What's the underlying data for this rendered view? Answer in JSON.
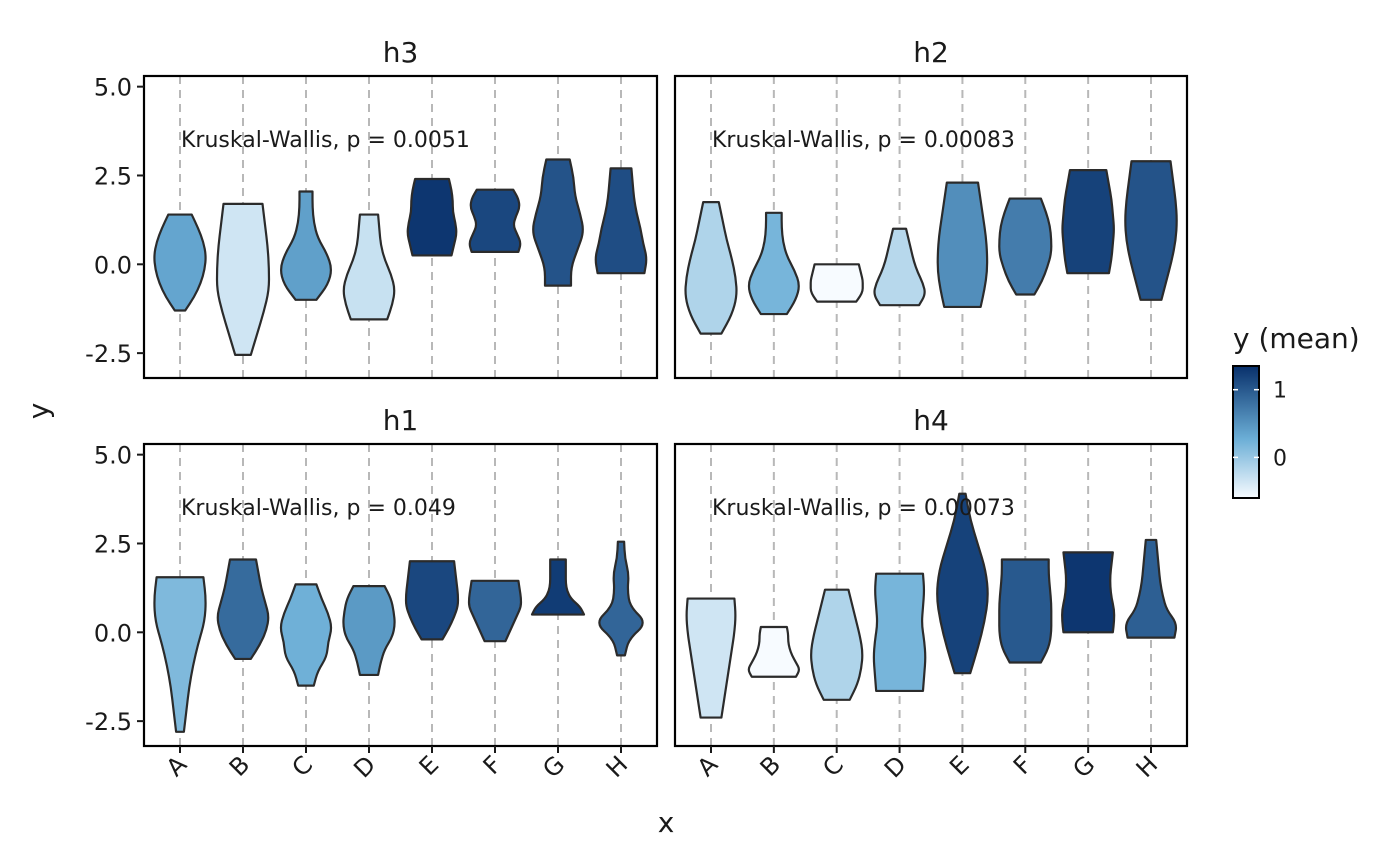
{
  "chart_data": {
    "type": "violin",
    "categories": [
      "A",
      "B",
      "C",
      "D",
      "E",
      "F",
      "G",
      "H"
    ],
    "xlabel": "x",
    "ylabel": "y",
    "ylim": [
      -3.2,
      5.3
    ],
    "yticks": [
      5.0,
      2.5,
      0.0,
      -2.5
    ],
    "ytick_labels": [
      "5.0",
      "2.5",
      "0.0",
      "-2.5"
    ],
    "grid": "vertical dashed",
    "legend": {
      "title": "y (mean)",
      "position": "right",
      "ticks": [
        1,
        0
      ],
      "tick_labels": [
        "1",
        "0"
      ],
      "range": [
        -0.6,
        1.35
      ],
      "color_low": "#f7fbff",
      "color_mid": "#6baed6",
      "color_high": "#08306b"
    },
    "panels": [
      {
        "title": "h3",
        "annotation": "Kruskal-Wallis, p = 0.0051",
        "violins": [
          {
            "x": "A",
            "min": -1.3,
            "max": 1.4,
            "mean": 0.35,
            "widths": [
              0.2,
              0.55,
              0.8,
              0.95,
              1.0,
              0.9,
              0.7,
              0.45
            ]
          },
          {
            "x": "B",
            "min": -2.55,
            "max": 1.7,
            "mean": -0.35,
            "widths": [
              0.3,
              0.55,
              0.8,
              1.0,
              1.0,
              0.95,
              0.85,
              0.75
            ]
          },
          {
            "x": "C",
            "min": -1.0,
            "max": 2.05,
            "mean": 0.4,
            "widths": [
              0.4,
              0.85,
              1.0,
              0.8,
              0.45,
              0.3,
              0.25,
              0.25
            ]
          },
          {
            "x": "D",
            "min": -1.55,
            "max": 1.4,
            "mean": -0.3,
            "widths": [
              0.7,
              0.9,
              1.0,
              0.85,
              0.6,
              0.45,
              0.4,
              0.35
            ]
          },
          {
            "x": "E",
            "min": 0.25,
            "max": 2.4,
            "mean": 1.3,
            "widths": [
              0.75,
              0.85,
              0.95,
              0.9,
              0.8,
              0.8,
              0.75,
              0.65
            ]
          },
          {
            "x": "F",
            "min": 0.35,
            "max": 2.1,
            "mean": 1.15,
            "widths": [
              0.9,
              1.0,
              0.85,
              0.7,
              0.8,
              0.95,
              0.9,
              0.7
            ]
          },
          {
            "x": "G",
            "min": -0.6,
            "max": 2.95,
            "mean": 1.05,
            "widths": [
              0.5,
              0.5,
              0.75,
              1.0,
              0.85,
              0.65,
              0.6,
              0.45
            ]
          },
          {
            "x": "H",
            "min": -0.25,
            "max": 2.7,
            "mean": 1.1,
            "widths": [
              0.9,
              1.0,
              0.85,
              0.75,
              0.6,
              0.5,
              0.45,
              0.4
            ]
          }
        ]
      },
      {
        "title": "h2",
        "annotation": "Kruskal-Wallis, p = 0.00083",
        "violins": [
          {
            "x": "A",
            "min": -1.95,
            "max": 1.75,
            "mean": -0.15,
            "widths": [
              0.4,
              0.8,
              1.0,
              0.95,
              0.8,
              0.6,
              0.45,
              0.3
            ]
          },
          {
            "x": "B",
            "min": -1.4,
            "max": 1.45,
            "mean": 0.2,
            "widths": [
              0.5,
              0.85,
              1.0,
              0.8,
              0.5,
              0.35,
              0.3,
              0.3
            ]
          },
          {
            "x": "C",
            "min": -1.05,
            "max": 0.0,
            "mean": -0.6,
            "widths": [
              0.75,
              0.9,
              1.0,
              1.0,
              1.0,
              0.95,
              0.9,
              0.85
            ]
          },
          {
            "x": "D",
            "min": -1.15,
            "max": 1.0,
            "mean": -0.2,
            "widths": [
              0.75,
              1.0,
              0.9,
              0.7,
              0.55,
              0.45,
              0.35,
              0.25
            ]
          },
          {
            "x": "E",
            "min": -1.2,
            "max": 2.3,
            "mean": 0.55,
            "widths": [
              0.7,
              0.85,
              0.95,
              0.95,
              0.9,
              0.8,
              0.7,
              0.6
            ]
          },
          {
            "x": "F",
            "min": -0.85,
            "max": 1.85,
            "mean": 0.7,
            "widths": [
              0.35,
              0.65,
              0.85,
              1.0,
              1.0,
              0.95,
              0.8,
              0.6
            ]
          },
          {
            "x": "G",
            "min": -0.25,
            "max": 2.65,
            "mean": 1.2,
            "widths": [
              0.8,
              0.9,
              0.95,
              1.0,
              0.95,
              0.9,
              0.8,
              0.7
            ]
          },
          {
            "x": "H",
            "min": -1.0,
            "max": 2.9,
            "mean": 1.05,
            "widths": [
              0.4,
              0.6,
              0.8,
              0.95,
              1.0,
              0.95,
              0.85,
              0.75
            ]
          }
        ]
      },
      {
        "title": "h1",
        "annotation": "Kruskal-Wallis, p = 0.049",
        "violins": [
          {
            "x": "A",
            "min": -2.8,
            "max": 1.55,
            "mean": 0.15,
            "widths": [
              0.15,
              0.25,
              0.35,
              0.5,
              0.7,
              0.95,
              1.0,
              0.9
            ]
          },
          {
            "x": "B",
            "min": -0.75,
            "max": 2.05,
            "mean": 0.85,
            "widths": [
              0.3,
              0.65,
              0.9,
              1.0,
              0.85,
              0.7,
              0.6,
              0.5
            ]
          },
          {
            "x": "C",
            "min": -1.5,
            "max": 1.35,
            "mean": 0.25,
            "widths": [
              0.3,
              0.45,
              0.8,
              0.85,
              1.0,
              0.85,
              0.6,
              0.4
            ]
          },
          {
            "x": "D",
            "min": -1.2,
            "max": 1.3,
            "mean": 0.45,
            "widths": [
              0.35,
              0.45,
              0.6,
              0.9,
              1.0,
              0.95,
              0.85,
              0.6
            ]
          },
          {
            "x": "E",
            "min": -0.2,
            "max": 2.0,
            "mean": 1.15,
            "widths": [
              0.4,
              0.65,
              0.85,
              1.0,
              1.0,
              0.95,
              0.9,
              0.85
            ]
          },
          {
            "x": "F",
            "min": -0.25,
            "max": 1.45,
            "mean": 0.9,
            "widths": [
              0.4,
              0.55,
              0.7,
              0.85,
              1.0,
              1.0,
              0.95,
              0.9
            ]
          },
          {
            "x": "G",
            "min": 0.5,
            "max": 2.05,
            "mean": 1.25,
            "widths": [
              1.0,
              0.85,
              0.5,
              0.35,
              0.3,
              0.3,
              0.3,
              0.3
            ]
          },
          {
            "x": "H",
            "min": -0.65,
            "max": 2.55,
            "mean": 0.9,
            "widths": [
              0.15,
              0.3,
              1.0,
              0.35,
              0.25,
              0.3,
              0.15,
              0.12
            ]
          }
        ]
      },
      {
        "title": "h4",
        "annotation": "Kruskal-Wallis, p = 0.00073",
        "violins": [
          {
            "x": "A",
            "min": -2.4,
            "max": 0.95,
            "mean": -0.35,
            "widths": [
              0.4,
              0.5,
              0.6,
              0.7,
              0.8,
              0.9,
              0.95,
              0.9
            ]
          },
          {
            "x": "B",
            "min": -1.25,
            "max": 0.15,
            "mean": -0.6,
            "widths": [
              0.85,
              1.0,
              0.85,
              0.7,
              0.6,
              0.55,
              0.55,
              0.5
            ]
          },
          {
            "x": "C",
            "min": -1.9,
            "max": 1.2,
            "mean": -0.15,
            "widths": [
              0.5,
              0.8,
              0.95,
              1.0,
              0.9,
              0.75,
              0.6,
              0.45
            ]
          },
          {
            "x": "D",
            "min": -1.65,
            "max": 1.65,
            "mean": 0.2,
            "widths": [
              0.9,
              0.95,
              1.0,
              0.95,
              0.85,
              0.9,
              0.95,
              0.9
            ]
          },
          {
            "x": "E",
            "min": -1.15,
            "max": 3.9,
            "mean": 1.2,
            "widths": [
              0.3,
              0.6,
              0.85,
              1.0,
              0.9,
              0.6,
              0.3,
              0.12
            ]
          },
          {
            "x": "F",
            "min": -0.85,
            "max": 2.05,
            "mean": 1.0,
            "widths": [
              0.6,
              0.9,
              1.0,
              1.0,
              1.0,
              0.95,
              0.9,
              0.9
            ]
          },
          {
            "x": "G",
            "min": 0.0,
            "max": 2.25,
            "mean": 1.3,
            "widths": [
              0.95,
              1.0,
              1.0,
              0.9,
              0.85,
              0.85,
              0.9,
              0.95
            ]
          },
          {
            "x": "H",
            "min": -0.15,
            "max": 2.6,
            "mean": 0.95,
            "widths": [
              0.9,
              1.0,
              0.6,
              0.45,
              0.35,
              0.3,
              0.25,
              0.2
            ]
          }
        ]
      }
    ]
  }
}
